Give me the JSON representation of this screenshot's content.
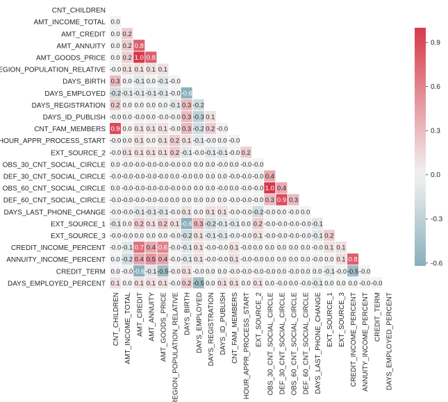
{
  "chart_data": {
    "type": "heatmap",
    "title": "",
    "mask": "upper-triangle",
    "labels": [
      "CNT_CHILDREN",
      "AMT_INCOME_TOTAL",
      "AMT_CREDIT",
      "AMT_ANNUITY",
      "AMT_GOODS_PRICE",
      "REGION_POPULATION_RELATIVE",
      "DAYS_BIRTH",
      "DAYS_EMPLOYED",
      "DAYS_REGISTRATION",
      "DAYS_ID_PUBLISH",
      "CNT_FAM_MEMBERS",
      "HOUR_APPR_PROCESS_START",
      "EXT_SOURCE_2",
      "OBS_30_CNT_SOCIAL_CIRCLE",
      "DEF_30_CNT_SOCIAL_CIRCLE",
      "OBS_60_CNT_SOCIAL_CIRCLE",
      "DEF_60_CNT_SOCIAL_CIRCLE",
      "DAYS_LAST_PHONE_CHANGE",
      "EXT_SOURCE_1",
      "EXT_SOURCE_3",
      "CREDIT_INCOME_PERCENT",
      "ANNUITY_INCOME_PERCENT",
      "CREDIT_TERM",
      "DAYS_EMPLOYED_PERCENT"
    ],
    "rows": [
      [],
      [
        "0.0"
      ],
      [
        "0.0",
        "0.2"
      ],
      [
        "0.0",
        "0.2",
        "0.8"
      ],
      [
        "0.0",
        "0.2",
        "1.0",
        "0.8"
      ],
      [
        "-0.0",
        "0.1",
        "0.1",
        "0.1",
        "0.1"
      ],
      [
        "0.3",
        "0.0",
        "-0.1",
        "0.0",
        "-0.1",
        "-0.0"
      ],
      [
        "-0.2",
        "-0.1",
        "-0.1",
        "-0.1",
        "-0.1",
        "-0.0",
        "-0.6"
      ],
      [
        "0.2",
        "0.0",
        "0.0",
        "0.0",
        "0.0",
        "-0.1",
        "0.3",
        "-0.2"
      ],
      [
        "-0.0",
        "0.0",
        "-0.0",
        "0.0",
        "-0.0",
        "-0.0",
        "0.3",
        "-0.3",
        "0.1"
      ],
      [
        "0.9",
        "0.0",
        "0.1",
        "0.1",
        "0.1",
        "-0.0",
        "0.3",
        "-0.2",
        "0.2",
        "-0.0"
      ],
      [
        "-0.0",
        "0.0",
        "0.1",
        "0.0",
        "0.1",
        "0.2",
        "0.1",
        "-0.1",
        "-0.0",
        "0.0",
        "-0.0"
      ],
      [
        "-0.0",
        "0.1",
        "0.1",
        "0.1",
        "0.1",
        "0.2",
        "-0.1",
        "-0.0",
        "-0.1",
        "-0.1",
        "-0.0",
        "0.2"
      ],
      [
        "0.0",
        "-0.0",
        "-0.0",
        "-0.0",
        "-0.0",
        "-0.0",
        "0.0",
        "0.0",
        "0.0",
        "-0.0",
        "0.0",
        "-0.0",
        "-0.0"
      ],
      [
        "-0.0",
        "-0.0",
        "-0.0",
        "-0.0",
        "-0.0",
        "0.0",
        "-0.0",
        "0.0",
        "0.0",
        "0.0",
        "-0.0",
        "-0.0",
        "-0.0",
        "0.4"
      ],
      [
        "0.0",
        "-0.0",
        "-0.0",
        "-0.0",
        "-0.0",
        "-0.0",
        "0.0",
        "0.0",
        "0.0",
        "-0.0",
        "0.0",
        "-0.0",
        "-0.0",
        "1.0",
        "0.4"
      ],
      [
        "-0.0",
        "-0.0",
        "-0.0",
        "-0.0",
        "-0.0",
        "0.0",
        "0.0",
        "0.0",
        "0.0",
        "0.0",
        "-0.0",
        "-0.0",
        "-0.0",
        "0.3",
        "0.9",
        "0.3"
      ],
      [
        "-0.0",
        "-0.0",
        "-0.1",
        "-0.1",
        "-0.1",
        "-0.0",
        "0.1",
        "0.0",
        "0.1",
        "0.1",
        "-0.0",
        "-0.0",
        "-0.2",
        "-0.0",
        "0.0",
        "-0.0",
        "0.0"
      ],
      [
        "-0.1",
        "0.0",
        "0.2",
        "0.1",
        "0.2",
        "0.1",
        "-0.6",
        "0.3",
        "-0.2",
        "-0.1",
        "-0.1",
        "0.0",
        "0.2",
        "-0.0",
        "-0.0",
        "-0.0",
        "-0.0",
        "-0.1"
      ],
      [
        "-0.0",
        "-0.0",
        "0.0",
        "0.0",
        "0.0",
        "-0.0",
        "-0.2",
        "0.1",
        "-0.1",
        "-0.1",
        "-0.0",
        "-0.0",
        "0.1",
        "-0.0",
        "-0.0",
        "-0.0",
        "-0.0",
        "-0.1",
        "0.2"
      ],
      [
        "-0.0",
        "-0.1",
        "0.7",
        "0.4",
        "0.6",
        "-0.0",
        "-0.1",
        "0.1",
        "-0.0",
        "-0.0",
        "0.1",
        "-0.0",
        "0.0",
        "0.0",
        "0.0",
        "0.0",
        "0.0",
        "-0.0",
        "0.1",
        "0.1"
      ],
      [
        "0.0",
        "-0.2",
        "0.4",
        "0.5",
        "0.4",
        "-0.0",
        "-0.1",
        "0.1",
        "-0.0",
        "-0.0",
        "0.1",
        "-0.0",
        "-0.0",
        "0.0",
        "0.0",
        "0.0",
        "0.0",
        "-0.0",
        "0.0",
        "0.1",
        "0.8"
      ],
      [
        "0.0",
        "-0.0",
        "-0.6",
        "-0.1",
        "-0.5",
        "-0.0",
        "0.1",
        "-0.0",
        "0.0",
        "0.0",
        "-0.0",
        "-0.0",
        "-0.0",
        "-0.0",
        "0.0",
        "-0.0",
        "0.0",
        "0.0",
        "-0.1",
        "-0.0",
        "-0.5",
        "-0.0"
      ],
      [
        "0.1",
        "0.0",
        "0.1",
        "0.1",
        "0.1",
        "-0.0",
        "0.2",
        "-0.5",
        "0.0",
        "0.1",
        "0.1",
        "0.0",
        "0.1",
        "0.0",
        "-0.0",
        "0.0",
        "-0.0",
        "-0.1",
        "0.0",
        "0.0",
        "0.0",
        "-0.0",
        "-0.0"
      ]
    ],
    "colorbar": {
      "range": [
        -0.62,
        1.0
      ],
      "ticks": [
        "0.9",
        "0.6",
        "0.3",
        "0.0",
        "-0.3",
        "-0.6"
      ],
      "colors": {
        "negative": "#4a8598",
        "center": "#f2f2f2",
        "positive": "#d7394a"
      }
    }
  }
}
